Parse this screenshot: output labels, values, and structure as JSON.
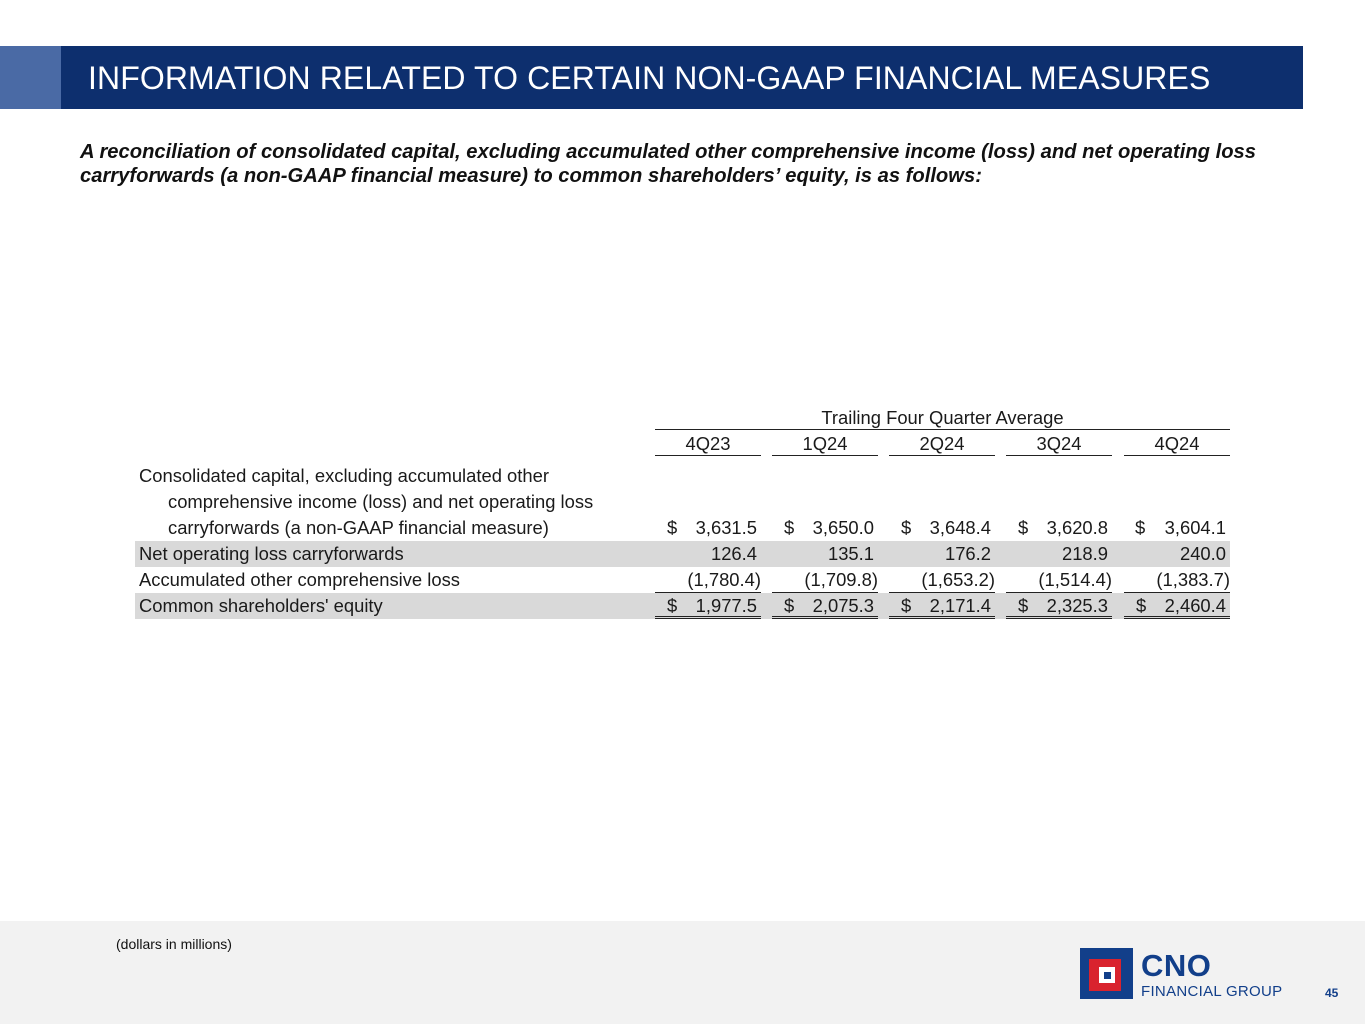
{
  "header": {
    "title": "INFORMATION RELATED TO CERTAIN NON-GAAP FINANCIAL MEASURES"
  },
  "intro": {
    "text": "A reconciliation of consolidated capital, excluding accumulated other comprehensive income (loss) and net operating loss carryforwards (a non-GAAP financial measure) to common shareholders’ equity, is as follows:"
  },
  "table": {
    "group_header": "Trailing Four Quarter Average",
    "columns": [
      "4Q23",
      "1Q24",
      "2Q24",
      "3Q24",
      "4Q24"
    ],
    "rows": [
      {
        "label_lines": [
          "Consolidated capital, excluding accumulated other",
          "comprehensive income (loss) and net operating loss",
          "carryforwards (a non-GAAP financial measure)"
        ],
        "cells": [
          {
            "dollar": "$",
            "value": "3,631.5"
          },
          {
            "dollar": "$",
            "value": "3,650.0"
          },
          {
            "dollar": "$",
            "value": "3,648.4"
          },
          {
            "dollar": "$",
            "value": "3,620.8"
          },
          {
            "dollar": "$",
            "value": "3,604.1"
          }
        ]
      },
      {
        "label": "Net operating loss carryforwards",
        "cells": [
          {
            "dollar": "",
            "value": "126.4"
          },
          {
            "dollar": "",
            "value": "135.1"
          },
          {
            "dollar": "",
            "value": "176.2"
          },
          {
            "dollar": "",
            "value": "218.9"
          },
          {
            "dollar": "",
            "value": "240.0"
          }
        ]
      },
      {
        "label": "Accumulated other comprehensive loss",
        "cells": [
          {
            "dollar": "",
            "value": "(1,780.4)"
          },
          {
            "dollar": "",
            "value": "(1,709.8)"
          },
          {
            "dollar": "",
            "value": "(1,653.2)"
          },
          {
            "dollar": "",
            "value": "(1,514.4)"
          },
          {
            "dollar": "",
            "value": "(1,383.7)"
          }
        ]
      },
      {
        "label": "Common shareholders' equity",
        "cells": [
          {
            "dollar": "$",
            "value": "1,977.5"
          },
          {
            "dollar": "$",
            "value": "2,075.3"
          },
          {
            "dollar": "$",
            "value": "2,171.4"
          },
          {
            "dollar": "$",
            "value": "2,325.3"
          },
          {
            "dollar": "$",
            "value": "2,460.4"
          }
        ]
      }
    ]
  },
  "footer": {
    "footnote": "(dollars in millions)",
    "logo_name": "CNO",
    "logo_subtitle": "FINANCIAL GROUP",
    "page_number": "45"
  },
  "colors": {
    "title_bar": "#0d2f6e",
    "title_accent": "#4a6aa5",
    "row_shade": "#d9d9d9",
    "brand_blue": "#123f8a",
    "brand_red": "#d9232e"
  }
}
